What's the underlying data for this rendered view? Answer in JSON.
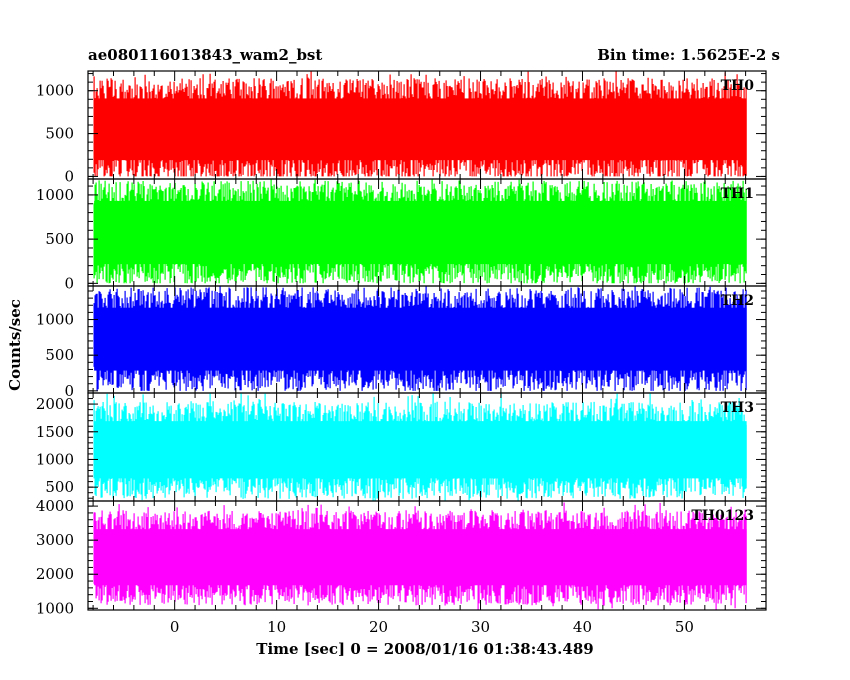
{
  "header": {
    "title": "ae080116013843_wam2_bst",
    "bin_time": "Bin time: 1.5625E-2 s"
  },
  "chart_data": {
    "type": "line",
    "title": "ae080116013843_wam2_bst",
    "xlabel": "Time [sec] 0 = 2008/01/16 01:38:43.489",
    "ylabel": "Counts/sec",
    "xlim": [
      -8.5,
      58
    ],
    "data_x_range": [
      -7.9,
      56.1
    ],
    "x_ticks": [
      0,
      10,
      20,
      30,
      40,
      50
    ],
    "x_tick_labels": [
      "0",
      "10",
      "20",
      "30",
      "40",
      "50"
    ],
    "grid": false,
    "legend": "none",
    "panels": [
      {
        "name": "TH0",
        "color": "#ff0000",
        "ylim": [
          -30,
          1230
        ],
        "yticks": [
          0,
          500,
          1000
        ],
        "ytick_labels": [
          "0",
          "500",
          "1000"
        ],
        "approx_range": [
          0,
          1230
        ],
        "approx_typical": [
          120,
          980
        ]
      },
      {
        "name": "TH1",
        "color": "#00ff00",
        "ylim": [
          -30,
          1180
        ],
        "yticks": [
          0,
          500,
          1000
        ],
        "ytick_labels": [
          "0",
          "500",
          "1000"
        ],
        "approx_range": [
          0,
          1180
        ],
        "approx_typical": [
          150,
          1000
        ]
      },
      {
        "name": "TH2",
        "color": "#0000ff",
        "ylim": [
          -30,
          1470
        ],
        "yticks": [
          0,
          500,
          1000
        ],
        "ytick_labels": [
          "0",
          "500",
          "1000"
        ],
        "approx_range": [
          0,
          1470
        ],
        "approx_typical": [
          200,
          1250
        ]
      },
      {
        "name": "TH3",
        "color": "#00ffff",
        "ylim": [
          250,
          2200
        ],
        "yticks": [
          500,
          1000,
          1500,
          2000
        ],
        "ytick_labels": [
          "500",
          "1000",
          "1500",
          "2000"
        ],
        "approx_range": [
          250,
          2200
        ],
        "approx_typical": [
          550,
          1800
        ]
      },
      {
        "name": "TH0123",
        "color": "#ff00ff",
        "ylim": [
          950,
          4150
        ],
        "yticks": [
          1000,
          2000,
          3000,
          4000
        ],
        "ytick_labels": [
          "1000",
          "2000",
          "3000",
          "4000"
        ],
        "approx_range": [
          950,
          4150
        ],
        "approx_typical": [
          1500,
          3500
        ]
      }
    ]
  }
}
